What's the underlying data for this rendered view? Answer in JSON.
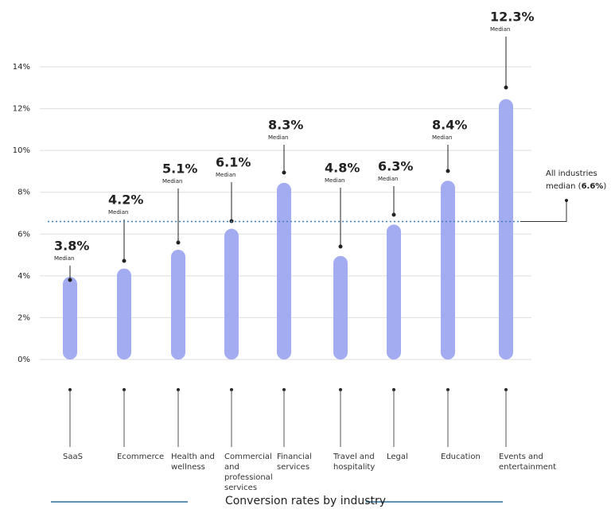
{
  "chart_data": {
    "type": "bar",
    "title": "Conversion rates by industry",
    "categories": [
      "SaaS",
      "Ecommerce",
      "Health and wellness",
      "Commercial and professional services",
      "Financial services",
      "Travel and hospitality",
      "Legal",
      "Education",
      "Events and entertainment"
    ],
    "values": [
      3.8,
      4.2,
      5.1,
      6.1,
      8.3,
      4.8,
      6.3,
      8.4,
      12.3
    ],
    "value_labels": [
      "3.8%",
      "4.2%",
      "5.1%",
      "6.1%",
      "8.3%",
      "4.8%",
      "6.3%",
      "8.4%",
      "12.3%"
    ],
    "value_sublabel": "Median",
    "color": "#a3acf1",
    "ylim": [
      0,
      14
    ],
    "yticks": [
      {
        "value": 0,
        "label": "0%"
      },
      {
        "value": 2,
        "label": "2%"
      },
      {
        "value": 4,
        "label": "4%"
      },
      {
        "value": 6,
        "label": "6%"
      },
      {
        "value": 8,
        "label": "8%"
      },
      {
        "value": 10,
        "label": "10%"
      },
      {
        "value": 12,
        "label": "12%"
      },
      {
        "value": 14,
        "label": "14%"
      }
    ],
    "grid": true,
    "reference_line": {
      "value": 6.6,
      "label_lines": [
        "All industries",
        "median ("
      ],
      "value_label": "6.6%",
      "label_suffix": ")",
      "color": "#3b7bbd"
    }
  }
}
